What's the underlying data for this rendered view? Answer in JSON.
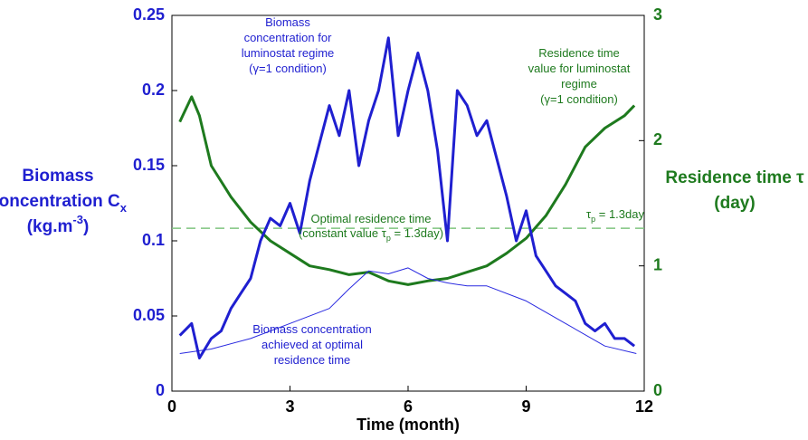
{
  "chart_data": {
    "type": "line",
    "xlabel": "Time (month)",
    "ylabel": [
      [
        {
          "text": "Biomass"
        }
      ],
      [
        {
          "text": "concentration C"
        },
        {
          "text": "x",
          "baseline": "sub"
        }
      ],
      [
        {
          "text": "(kg.m"
        },
        {
          "text": "-3",
          "baseline": "super"
        },
        {
          "text": ")"
        }
      ]
    ],
    "y2label": [
      [
        {
          "text": "Residence time τ"
        }
      ],
      [
        {
          "text": "(day)"
        }
      ]
    ],
    "xlim": [
      0,
      12
    ],
    "xticks": [
      0,
      3,
      6,
      9,
      12
    ],
    "ylim": [
      0,
      0.25
    ],
    "yticks": [
      0,
      0.05,
      0.1,
      0.15,
      0.2,
      0.25
    ],
    "y2lim": [
      0,
      3
    ],
    "y2ticks": [
      0,
      1,
      2,
      3
    ],
    "ycolor": "#1f1fd0",
    "y2color": "#1e7a1e",
    "reference_line": {
      "value": 1.3,
      "axis": "y2",
      "color": "#7fc47f"
    },
    "series": [
      {
        "name": "Residence time value for luminostat regime",
        "color": "#1e7a1e",
        "axis": "y2",
        "width": 3,
        "x": [
          0.2,
          0.5,
          0.7,
          1.0,
          1.5,
          2.0,
          2.5,
          3.0,
          3.5,
          4.0,
          4.5,
          5.0,
          5.5,
          6.0,
          6.5,
          7.0,
          7.5,
          8.0,
          8.5,
          9.0,
          9.5,
          10.0,
          10.5,
          11.0,
          11.5,
          11.75
        ],
        "values": [
          2.15,
          2.35,
          2.2,
          1.8,
          1.55,
          1.35,
          1.2,
          1.1,
          1.0,
          0.97,
          0.93,
          0.95,
          0.88,
          0.85,
          0.88,
          0.9,
          0.95,
          1.0,
          1.1,
          1.22,
          1.4,
          1.65,
          1.95,
          2.1,
          2.2,
          2.28
        ]
      },
      {
        "name": "Biomass concentration achieved at optimal residence time",
        "color": "#2a2ae0",
        "axis": "y",
        "width": 1,
        "x": [
          0.2,
          1,
          2,
          3,
          4,
          4.5,
          5,
          5.5,
          6,
          6.5,
          7,
          7.5,
          8,
          9,
          10,
          11,
          11.8
        ],
        "values": [
          0.025,
          0.028,
          0.035,
          0.045,
          0.055,
          0.068,
          0.08,
          0.078,
          0.082,
          0.075,
          0.072,
          0.07,
          0.07,
          0.06,
          0.045,
          0.03,
          0.025
        ]
      },
      {
        "name": "Biomass concentration for luminostat regime",
        "color": "#1f1fd0",
        "axis": "y",
        "width": 3,
        "x": [
          0.2,
          0.5,
          0.7,
          1.0,
          1.25,
          1.5,
          1.75,
          2.0,
          2.25,
          2.5,
          2.75,
          3.0,
          3.25,
          3.5,
          3.75,
          4.0,
          4.25,
          4.5,
          4.75,
          5.0,
          5.25,
          5.5,
          5.75,
          6.0,
          6.25,
          6.5,
          6.75,
          7.0,
          7.25,
          7.5,
          7.75,
          8.0,
          8.25,
          8.5,
          8.75,
          9.0,
          9.25,
          9.5,
          9.75,
          10.0,
          10.25,
          10.5,
          10.75,
          11.0,
          11.25,
          11.5,
          11.75
        ],
        "values": [
          0.037,
          0.045,
          0.022,
          0.035,
          0.04,
          0.055,
          0.065,
          0.075,
          0.1,
          0.115,
          0.11,
          0.125,
          0.105,
          0.14,
          0.165,
          0.19,
          0.17,
          0.2,
          0.15,
          0.18,
          0.2,
          0.235,
          0.17,
          0.2,
          0.225,
          0.2,
          0.16,
          0.1,
          0.2,
          0.19,
          0.17,
          0.18,
          0.155,
          0.13,
          0.1,
          0.12,
          0.09,
          0.08,
          0.07,
          0.065,
          0.06,
          0.045,
          0.04,
          0.045,
          0.035,
          0.035,
          0.03
        ]
      }
    ],
    "annotations": [
      {
        "color": "#1f1fd0",
        "lines": [
          [
            {
              "text": "Biomass"
            }
          ],
          [
            {
              "text": "concentration for"
            }
          ],
          [
            {
              "text": "luminostat regime"
            }
          ],
          [
            {
              "text": "(γ=1 condition)"
            }
          ]
        ]
      },
      {
        "color": "#1e7a1e",
        "lines": [
          [
            {
              "text": "Residence time"
            }
          ],
          [
            {
              "text": "value for luminostat"
            }
          ],
          [
            {
              "text": "regime"
            }
          ],
          [
            {
              "text": "(γ=1 condition)"
            }
          ]
        ]
      },
      {
        "color": "#1e7a1e",
        "lines": [
          [
            {
              "text": "Optimal residence time"
            }
          ],
          [
            {
              "text": "(constant value τ"
            },
            {
              "text": "p",
              "baseline": "sub"
            },
            {
              "text": " = 1.3day)"
            }
          ]
        ]
      },
      {
        "color": "#1e7a1e",
        "lines": [
          [
            {
              "text": "τ"
            },
            {
              "text": "p",
              "baseline": "sub"
            },
            {
              "text": " = 1.3day"
            }
          ]
        ]
      },
      {
        "color": "#1f1fd0",
        "lines": [
          [
            {
              "text": "Biomass concentration"
            }
          ],
          [
            {
              "text": "achieved at optimal"
            }
          ],
          [
            {
              "text": "residence time"
            }
          ]
        ]
      }
    ]
  }
}
